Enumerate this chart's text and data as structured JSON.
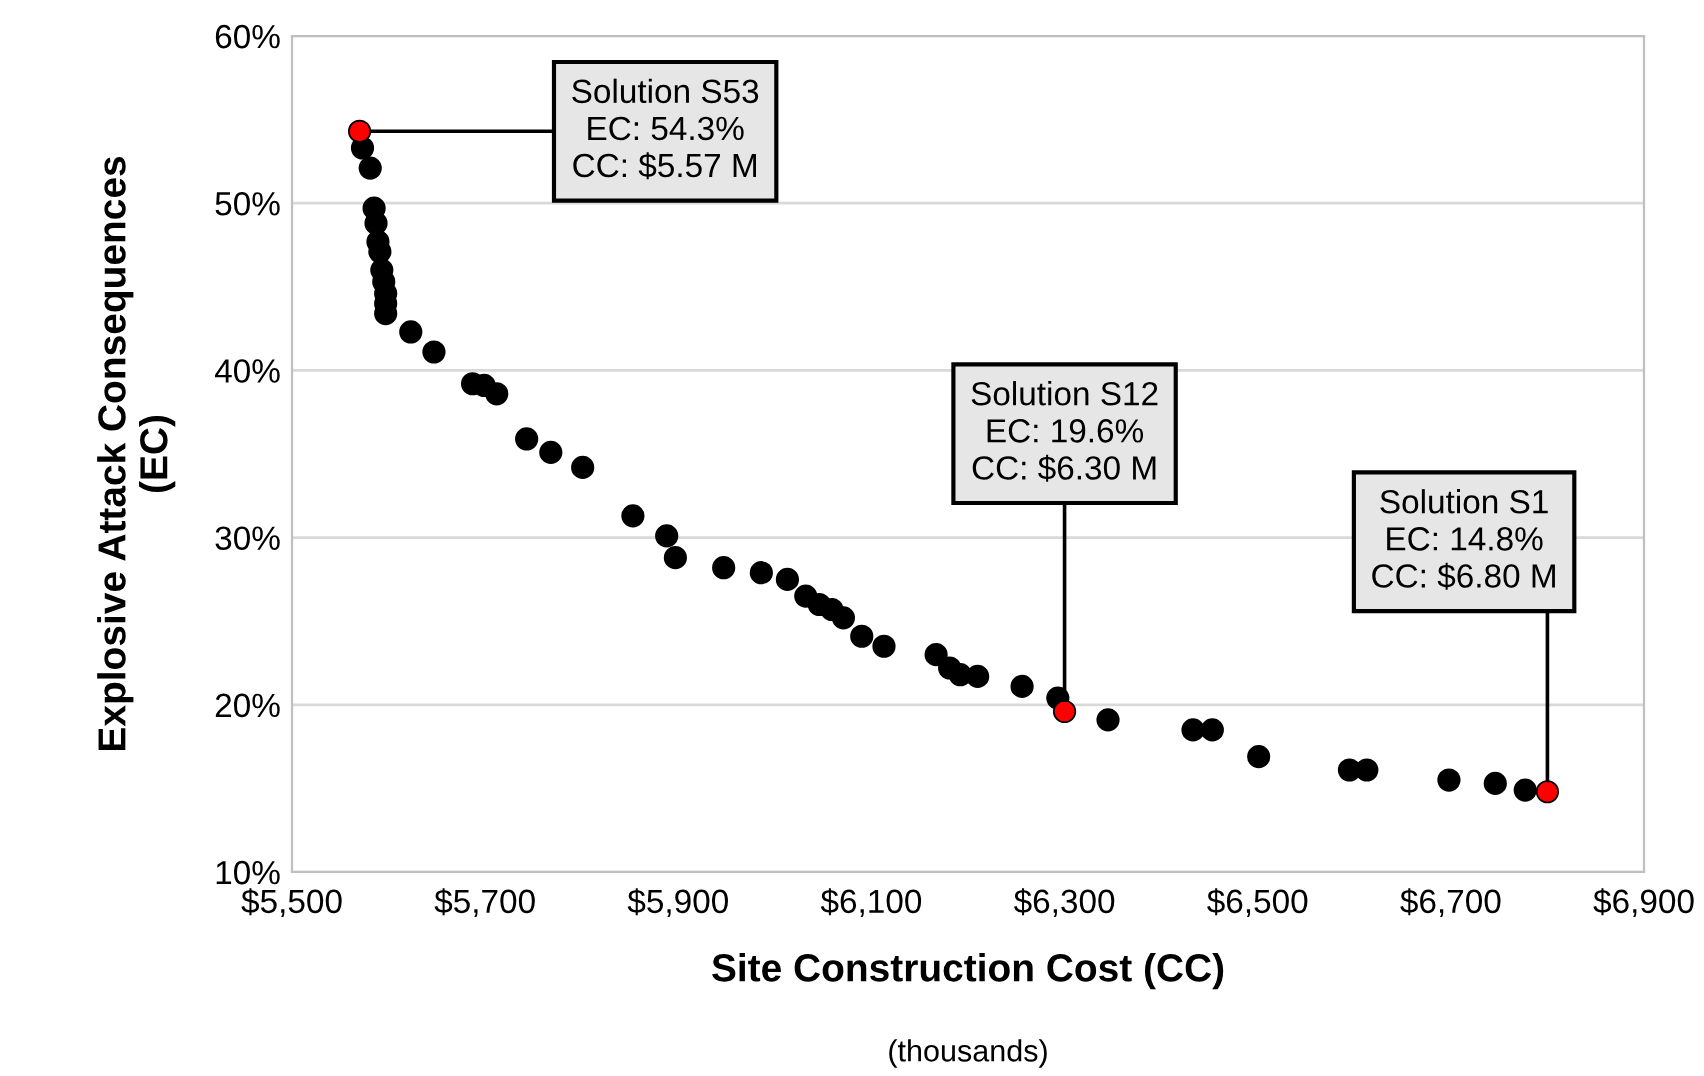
{
  "chart_data": {
    "type": "scatter",
    "xlabel": "Site Construction Cost (CC)",
    "ylabel": "Explosive Attack Consequences\n(EC)",
    "annotations": [
      "(thousands)",
      {
        "text": "Solution S53\nEC: 54.3%\nCC: $5.57 M",
        "x": 5570,
        "y": 54.3
      },
      {
        "text": "Solution S12\nEC: 19.6%\nCC: $6.30 M",
        "x": 6300,
        "y": 19.6
      },
      {
        "text": "Solution S1\nEC: 14.8%\nCC: $6.80 M",
        "x": 6800,
        "y": 14.8
      }
    ],
    "series": [
      {
        "color": "#000000",
        "x": [
          5573,
          5581,
          5585,
          5587,
          5589,
          5591,
          5593,
          5595,
          5597,
          5597,
          5597,
          5623,
          5647,
          5687,
          5699,
          5712,
          5743,
          5768,
          5801,
          5853,
          5888,
          5897,
          5947,
          5986,
          6013,
          6032,
          6046,
          6059,
          6071,
          6090,
          6113,
          6167,
          6181,
          6192,
          6210,
          6256,
          6293,
          6345,
          6433,
          6453,
          6501,
          6595,
          6613,
          6698,
          6746,
          6777
        ],
        "values": [
          53.3,
          52.1,
          49.7,
          48.8,
          47.7,
          47.1,
          46.0,
          45.3,
          44.6,
          44.0,
          43.4,
          42.3,
          41.1,
          39.2,
          39.1,
          38.6,
          35.9,
          35.1,
          34.2,
          31.3,
          30.1,
          28.8,
          28.2,
          27.9,
          27.5,
          26.5,
          26.0,
          25.7,
          25.2,
          24.1,
          23.5,
          23.0,
          22.2,
          21.8,
          21.7,
          21.1,
          20.4,
          19.1,
          18.5,
          18.5,
          16.9,
          16.1,
          16.1,
          15.5,
          15.3,
          14.9
        ]
      },
      {
        "color": "#ff0000",
        "x": [
          5570,
          6300,
          6800
        ],
        "values": [
          54.3,
          19.6,
          14.8
        ]
      }
    ],
    "xlim": [
      5500,
      6900
    ],
    "xticks": [
      {
        "value": 5500,
        "label": "$5,500"
      },
      {
        "value": 5700,
        "label": "$5,700"
      },
      {
        "value": 5900,
        "label": "$5,900"
      },
      {
        "value": 6100,
        "label": "$6,100"
      },
      {
        "value": 6300,
        "label": "$6,300"
      },
      {
        "value": 6500,
        "label": "$6,500"
      },
      {
        "value": 6700,
        "label": "$6,700"
      },
      {
        "value": 6900,
        "label": "$6,900"
      }
    ],
    "ylim": [
      10,
      60
    ],
    "yticks": [
      {
        "value": 10,
        "label": "10%"
      },
      {
        "value": 20,
        "label": "20%"
      },
      {
        "value": 30,
        "label": "30%"
      },
      {
        "value": 40,
        "label": "40%"
      },
      {
        "value": 50,
        "label": "50%"
      },
      {
        "value": 60,
        "label": "60%"
      }
    ],
    "grid": "y",
    "marker": "circle",
    "legend": false
  }
}
